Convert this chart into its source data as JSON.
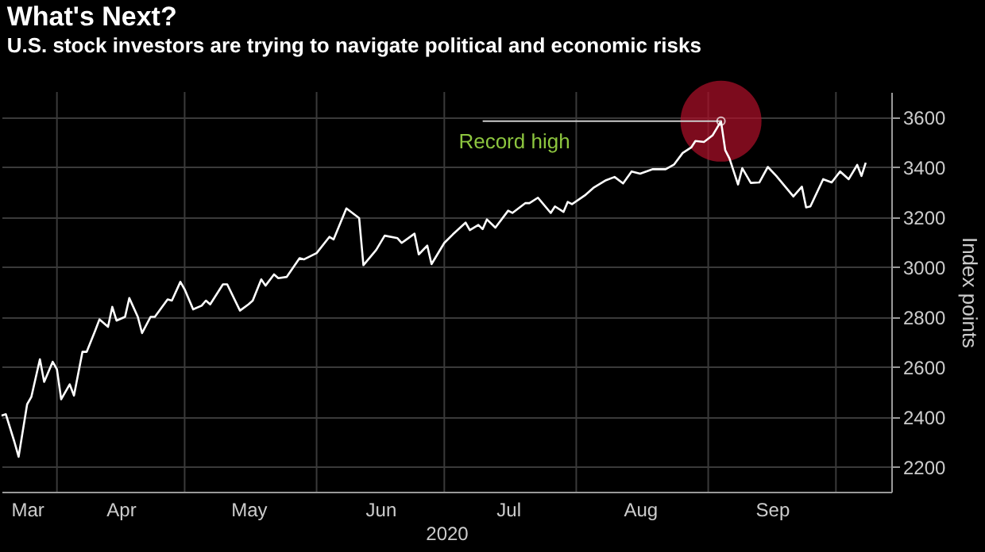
{
  "chart_data": {
    "type": "line",
    "title": "What's Next?",
    "subtitle": "U.S. stock investors are trying to navigate political and economic risks",
    "xlabel": "2020",
    "ylabel": "Index points",
    "x": [
      "2020-03-19",
      "2020-03-20",
      "2020-03-22",
      "2020-03-23",
      "2020-03-25",
      "2020-03-26",
      "2020-03-28",
      "2020-03-29",
      "2020-03-31",
      "2020-04-01",
      "2020-04-02",
      "2020-04-04",
      "2020-04-05",
      "2020-04-07",
      "2020-04-08",
      "2020-04-10",
      "2020-04-11",
      "2020-04-13",
      "2020-04-14",
      "2020-04-15",
      "2020-04-17",
      "2020-04-18",
      "2020-04-20",
      "2020-04-21",
      "2020-04-23",
      "2020-04-24",
      "2020-04-27",
      "2020-04-28",
      "2020-04-30",
      "2020-05-01",
      "2020-05-03",
      "2020-05-05",
      "2020-05-06",
      "2020-05-07",
      "2020-05-10",
      "2020-05-11",
      "2020-05-14",
      "2020-05-16",
      "2020-05-17",
      "2020-05-19",
      "2020-05-20",
      "2020-05-22",
      "2020-05-23",
      "2020-05-25",
      "2020-05-28",
      "2020-05-29",
      "2020-06-01",
      "2020-06-04",
      "2020-06-05",
      "2020-06-08",
      "2020-06-11",
      "2020-06-12",
      "2020-06-15",
      "2020-06-17",
      "2020-06-20",
      "2020-06-21",
      "2020-06-24",
      "2020-06-25",
      "2020-06-27",
      "2020-06-28",
      "2020-07-01",
      "2020-07-03",
      "2020-07-06",
      "2020-07-07",
      "2020-07-09",
      "2020-07-10",
      "2020-07-11",
      "2020-07-13",
      "2020-07-16",
      "2020-07-17",
      "2020-07-20",
      "2020-07-21",
      "2020-07-23",
      "2020-07-26",
      "2020-07-27",
      "2020-07-29",
      "2020-07-30",
      "2020-07-31",
      "2020-08-03",
      "2020-08-05",
      "2020-08-08",
      "2020-08-10",
      "2020-08-12",
      "2020-08-14",
      "2020-08-16",
      "2020-08-19",
      "2020-08-22",
      "2020-08-24",
      "2020-08-26",
      "2020-08-28",
      "2020-08-29",
      "2020-08-31",
      "2020-09-02",
      "2020-09-04",
      "2020-09-05",
      "2020-09-06",
      "2020-09-08",
      "2020-09-09",
      "2020-09-11",
      "2020-09-13",
      "2020-09-15",
      "2020-09-17",
      "2020-09-21",
      "2020-09-23",
      "2020-09-24",
      "2020-09-25",
      "2020-09-28",
      "2020-09-30",
      "2020-10-02",
      "2020-10-04",
      "2020-10-06",
      "2020-10-07",
      "2020-10-08"
    ],
    "series": [
      {
        "color": "#ffffff",
        "values": [
          2405,
          2410,
          2300,
          2240,
          2450,
          2480,
          2630,
          2540,
          2620,
          2590,
          2470,
          2530,
          2485,
          2660,
          2660,
          2745,
          2790,
          2760,
          2840,
          2785,
          2800,
          2875,
          2800,
          2735,
          2800,
          2800,
          2870,
          2865,
          2940,
          2910,
          2830,
          2845,
          2865,
          2850,
          2930,
          2930,
          2825,
          2850,
          2865,
          2950,
          2925,
          2970,
          2955,
          2960,
          3035,
          3030,
          3055,
          3120,
          3110,
          3234,
          3195,
          3007,
          3068,
          3125,
          3115,
          3096,
          3133,
          3050,
          3085,
          3011,
          3096,
          3130,
          3177,
          3147,
          3168,
          3151,
          3190,
          3157,
          3225,
          3216,
          3255,
          3255,
          3277,
          3216,
          3242,
          3220,
          3260,
          3251,
          3286,
          3316,
          3347,
          3360,
          3334,
          3382,
          3373,
          3391,
          3391,
          3410,
          3456,
          3478,
          3504,
          3500,
          3526,
          3583,
          3467,
          3434,
          3330,
          3395,
          3336,
          3338,
          3400,
          3364,
          3282,
          3321,
          3238,
          3242,
          3351,
          3338,
          3382,
          3351,
          3408,
          3364,
          3417
        ]
      }
    ],
    "xlim": [
      "2020-03-19",
      "2020-10-14"
    ],
    "ylim": [
      2100,
      3700
    ],
    "xticks": [
      {
        "value": "2020-04-01",
        "label": null
      },
      {
        "value": "2020-05-01",
        "label": null
      },
      {
        "value": "2020-06-01",
        "label": null
      },
      {
        "value": "2020-07-01",
        "label": null
      },
      {
        "value": "2020-08-01",
        "label": null
      },
      {
        "value": "2020-09-01",
        "label": null
      },
      {
        "value": "2020-10-01",
        "label": null
      },
      {
        "value": "2020-03-25",
        "label": "Mar"
      },
      {
        "value": "2020-04-16",
        "label": "Apr"
      },
      {
        "value": "2020-05-16",
        "label": "May"
      },
      {
        "value": "2020-06-16",
        "label": "Jun"
      },
      {
        "value": "2020-07-16",
        "label": "Jul"
      },
      {
        "value": "2020-08-16",
        "label": "Aug"
      },
      {
        "value": "2020-09-16",
        "label": "Sep"
      }
    ],
    "yticks": [
      2200,
      2400,
      2600,
      2800,
      3000,
      3200,
      3400,
      3600
    ],
    "grid": true,
    "annotations": [
      {
        "text": "Record high",
        "x": "2020-09-04",
        "y": 3583
      }
    ]
  }
}
